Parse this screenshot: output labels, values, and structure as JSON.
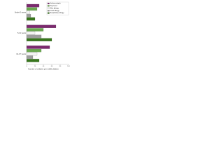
{
  "chart_data": {
    "type": "hbar",
    "x_label": "Number of children per 1,000 children",
    "categories": [
      "Under 5 years",
      "5-11 years",
      "12-17 years"
    ],
    "series": [
      {
        "name": "Asthma attack",
        "color": "#7b2a6e",
        "values": [
          30,
          70,
          55
        ]
      },
      {
        "name": "Hay fever",
        "color": "#6aa84f",
        "values": [
          25,
          40,
          35
        ]
      },
      {
        "name": "Skin allergy",
        "color": "#f4f4f4",
        "values": [
          8,
          20,
          25
        ]
      },
      {
        "name": "Food allergy",
        "color": "#9e9e9e",
        "values": [
          10,
          35,
          15
        ]
      },
      {
        "name": "Respiratory allergy",
        "color": "#38761d",
        "values": [
          20,
          60,
          30
        ]
      }
    ],
    "xlim": [
      0,
      100
    ],
    "xticks": [
      0,
      20,
      40,
      60,
      80,
      100
    ],
    "legend": "top-right"
  }
}
